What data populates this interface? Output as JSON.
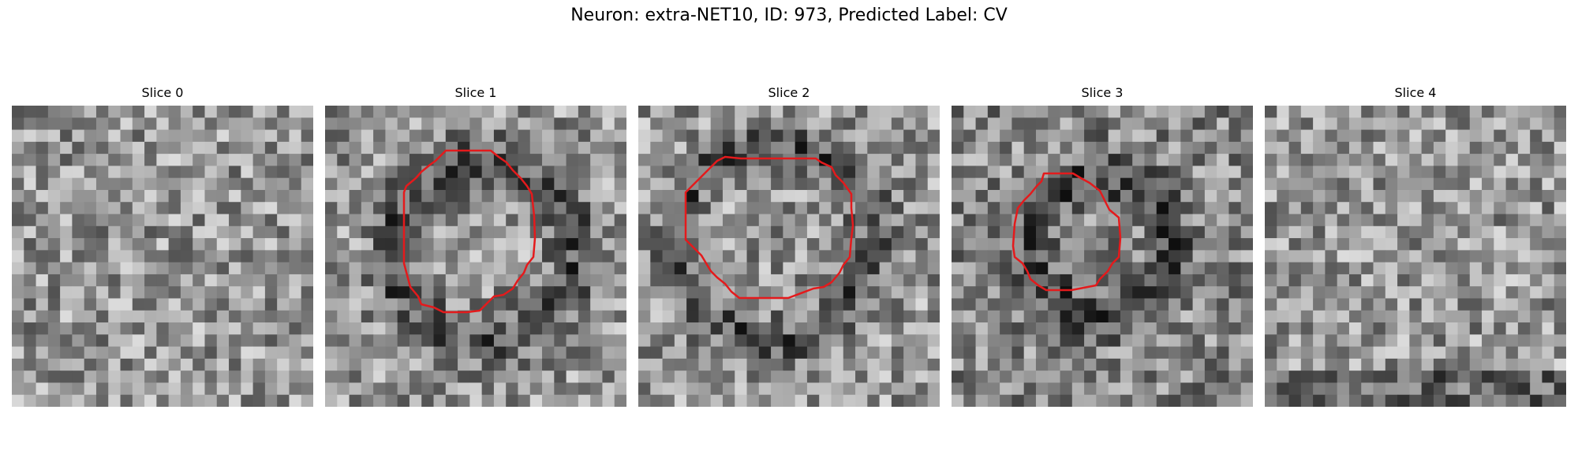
{
  "figure": {
    "title": "Neuron: extra-NET10, ID: 973, Predicted Label: CV",
    "slices": [
      {
        "title": "Slice 0",
        "tone": "light",
        "contour": false,
        "seed": 11
      },
      {
        "title": "Slice 1",
        "tone": "light",
        "contour": true,
        "seed": 23
      },
      {
        "title": "Slice 2",
        "tone": "light",
        "contour": true,
        "seed": 37
      },
      {
        "title": "Slice 3",
        "tone": "medium",
        "contour": true,
        "seed": 41
      },
      {
        "title": "Slice 4",
        "tone": "light",
        "contour": false,
        "seed": 53
      }
    ],
    "contour_color": "#e41a1c"
  }
}
